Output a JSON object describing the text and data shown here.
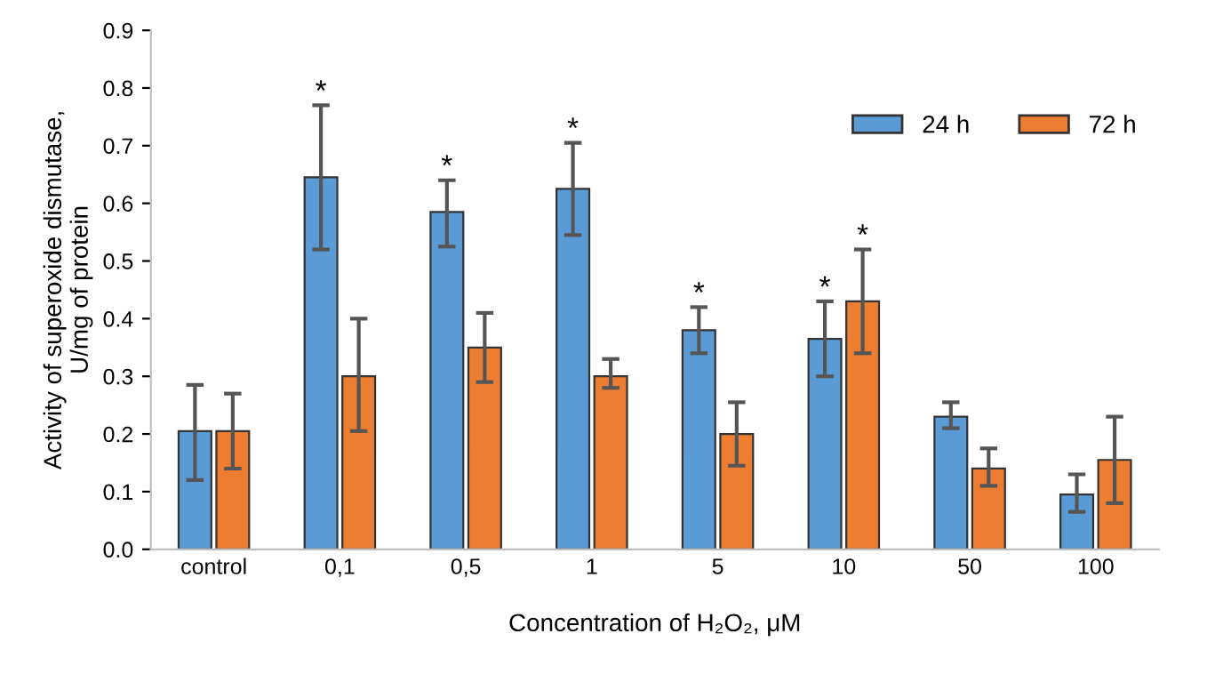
{
  "chart_data": {
    "type": "bar",
    "xlabel": "Concentration of H₂O₂, μM",
    "ylabel": "Activity of superoxide dismutase,\nU/mg of protein",
    "categories": [
      "control",
      "0,1",
      "0,5",
      "1",
      "5",
      "10",
      "50",
      "100"
    ],
    "series": [
      {
        "name": "24 h",
        "color": "#5b9bd5",
        "values": [
          0.205,
          0.645,
          0.585,
          0.625,
          0.38,
          0.365,
          0.23,
          0.095
        ],
        "errors": [
          [
            0.12,
            0.285
          ],
          [
            0.52,
            0.77
          ],
          [
            0.525,
            0.64
          ],
          [
            0.545,
            0.705
          ],
          [
            0.34,
            0.42
          ],
          [
            0.3,
            0.43
          ],
          [
            0.21,
            0.255
          ],
          [
            0.065,
            0.13
          ]
        ]
      },
      {
        "name": "72 h",
        "color": "#ed7d31",
        "values": [
          0.205,
          0.3,
          0.35,
          0.3,
          0.2,
          0.43,
          0.14,
          0.155
        ],
        "errors": [
          [
            0.14,
            0.27
          ],
          [
            0.205,
            0.4
          ],
          [
            0.29,
            0.41
          ],
          [
            0.28,
            0.33
          ],
          [
            0.145,
            0.255
          ],
          [
            0.34,
            0.52
          ],
          [
            0.11,
            0.175
          ],
          [
            0.08,
            0.23
          ]
        ]
      }
    ],
    "annotations": [
      {
        "text": "*",
        "x": "0,1",
        "y": 0.645
      },
      {
        "text": "*",
        "x": "0,5",
        "y": 0.585
      },
      {
        "text": "*",
        "x": "1",
        "y": 0.625
      },
      {
        "text": "*",
        "x": "5",
        "y": 0.38
      },
      {
        "text": "*",
        "x": "10",
        "y": 0.365
      },
      {
        "text": "*",
        "x": "10",
        "y": 0.43
      }
    ],
    "ylim": [
      0,
      0.9
    ],
    "yticks": [
      {
        "value": 0,
        "label": "0.0"
      },
      0.1,
      0.2,
      0.3,
      0.4,
      0.5,
      0.6,
      0.7,
      0.8,
      0.9
    ],
    "grid": false,
    "legend": "top right"
  }
}
